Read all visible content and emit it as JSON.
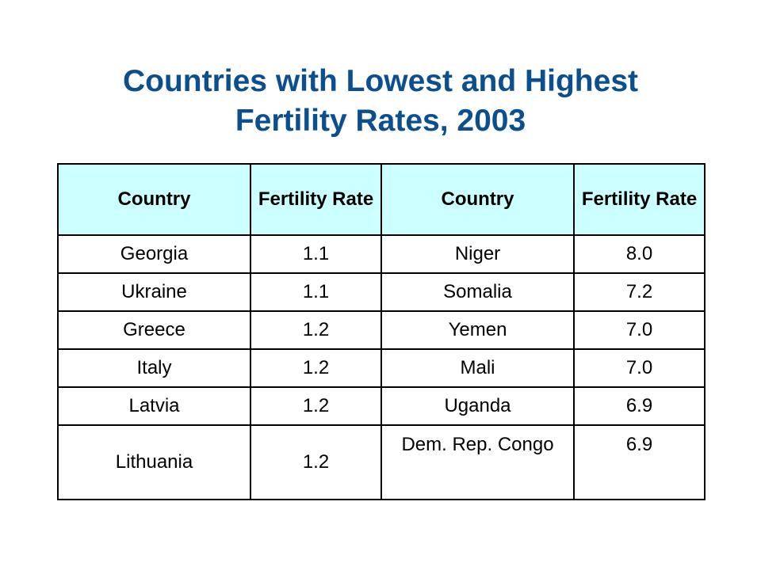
{
  "title": {
    "line1": "Countries with Lowest and Highest",
    "line2": "Fertility Rates, 2003"
  },
  "colors": {
    "title": "#0b4f8f",
    "header_background": "#ccffff",
    "border": "#000000"
  },
  "table": {
    "headers": [
      "Country",
      "Fertility Rate",
      "Country",
      "Fertility Rate"
    ],
    "rows": [
      [
        "Georgia",
        "1.1",
        "Niger",
        "8.0"
      ],
      [
        "Ukraine",
        "1.1",
        "Somalia",
        "7.2"
      ],
      [
        "Greece",
        "1.2",
        "Yemen",
        "7.0"
      ],
      [
        "Italy",
        "1.2",
        "Mali",
        "7.0"
      ],
      [
        "Latvia",
        "1.2",
        "Uganda",
        "6.9"
      ],
      [
        "Lithuania",
        "1.2",
        "Dem. Rep. Congo",
        "6.9"
      ]
    ]
  }
}
